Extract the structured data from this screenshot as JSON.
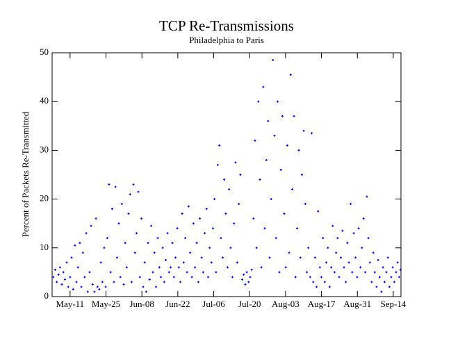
{
  "chart_data": {
    "type": "scatter",
    "title": "TCP Re-Transmissions",
    "subtitle": "Philadelphia to Paris",
    "ylabel": "Percent of Packets Re-Transmitted",
    "color": "#0000ff",
    "xlim": [
      124,
      260
    ],
    "ylim": [
      0,
      50
    ],
    "xticks": [
      {
        "value": 131,
        "label": "May-11"
      },
      {
        "value": 145,
        "label": "May-25"
      },
      {
        "value": 159,
        "label": "Jun-08"
      },
      {
        "value": 173,
        "label": "Jun-22"
      },
      {
        "value": 187,
        "label": "Jul-06"
      },
      {
        "value": 201,
        "label": "Jul-20"
      },
      {
        "value": 215,
        "label": "Aug-03"
      },
      {
        "value": 229,
        "label": "Aug-17"
      },
      {
        "value": 243,
        "label": "Aug-31"
      },
      {
        "value": 257,
        "label": "Sep-14"
      }
    ],
    "yticks": [
      0,
      10,
      20,
      30,
      40,
      50
    ],
    "x": [
      124.5,
      125.2,
      125.8,
      126.5,
      127.1,
      127.8,
      128.4,
      129,
      129.7,
      130.3,
      131,
      131.6,
      132.2,
      132.9,
      133.5,
      134.1,
      134.8,
      135.4,
      136,
      136.7,
      137.3,
      137.9,
      138.6,
      139.2,
      139.8,
      140.5,
      141.1,
      141.7,
      142.4,
      143,
      143.6,
      144.3,
      144.9,
      145.5,
      146.2,
      146.8,
      147.4,
      148.1,
      148.7,
      149.3,
      150,
      150.6,
      151.2,
      151.9,
      152.5,
      153.1,
      153.8,
      154.4,
      155,
      155.7,
      156.3,
      156.9,
      157.6,
      158.2,
      158.8,
      159.5,
      160.1,
      160.7,
      161.4,
      162,
      162.6,
      163.3,
      163.9,
      164.5,
      165.2,
      165.8,
      166.4,
      167.1,
      167.7,
      168.3,
      169,
      169.6,
      170.2,
      170.9,
      171.5,
      172.1,
      172.8,
      173.4,
      174,
      174.7,
      175.3,
      175.9,
      176.6,
      177.2,
      177.8,
      178.5,
      179.1,
      179.7,
      180.4,
      181,
      181.6,
      182.3,
      182.9,
      183.5,
      184.2,
      184.8,
      185.4,
      186.1,
      186.7,
      187.3,
      187.9,
      188.6,
      189.2,
      189.8,
      190.5,
      191.1,
      191.7,
      192.4,
      193,
      193.6,
      194.3,
      194.9,
      195.5,
      196.2,
      196.8,
      197.4,
      198.1,
      198.7,
      199.3,
      199.9,
      200.6,
      201.2,
      201.8,
      202.5,
      203.1,
      203.7,
      204.4,
      205,
      205.6,
      206.3,
      206.9,
      207.5,
      208.2,
      208.8,
      209.4,
      210.1,
      210.7,
      211.3,
      211.9,
      212.6,
      213.2,
      213.8,
      214.5,
      215.1,
      215.7,
      216.4,
      217,
      217.6,
      218.3,
      218.9,
      219.5,
      220.2,
      220.8,
      221.4,
      222.1,
      222.7,
      223.3,
      223.9,
      224.6,
      225.2,
      225.8,
      226.5,
      227.1,
      227.7,
      228.4,
      229,
      229.6,
      230.3,
      230.9,
      231.5,
      232.2,
      232.8,
      233.4,
      234.1,
      234.7,
      235.3,
      235.9,
      236.6,
      237.2,
      237.8,
      238.5,
      239.1,
      239.7,
      240.4,
      241,
      241.6,
      242.3,
      242.9,
      243.5,
      244.2,
      244.8,
      245.4,
      246.1,
      246.7,
      247.3,
      247.9,
      248.6,
      249.2,
      249.8,
      250.5,
      251.1,
      251.7,
      252.4,
      253,
      253.6,
      254.3,
      254.9,
      255.5,
      256.2,
      256.8,
      257.4,
      258.1,
      258.7,
      259.3,
      259.8
    ],
    "values": [
      4,
      5.5,
      3,
      4.5,
      6,
      2.5,
      5,
      3.5,
      7,
      2,
      4,
      8,
      1.5,
      10.5,
      3,
      6,
      11,
      2,
      9,
      4,
      13,
      1,
      5,
      14.5,
      2.5,
      1,
      16,
      2,
      1.5,
      7,
      3,
      10,
      2,
      12,
      23,
      5,
      18,
      3,
      22.5,
      8,
      15,
      4,
      19,
      2.5,
      11,
      6,
      17,
      21,
      3,
      23,
      9,
      13,
      21.5,
      4,
      16,
      2,
      7,
      1,
      11,
      3.5,
      14.5,
      5,
      9,
      2,
      12,
      6,
      4,
      10,
      3,
      7.5,
      13,
      5,
      6,
      11,
      4,
      8,
      14,
      6,
      3,
      17,
      7,
      12,
      5,
      18.5,
      9,
      4,
      15,
      6,
      11,
      3,
      16,
      8,
      5,
      13,
      18,
      4,
      10,
      7,
      14,
      20,
      5,
      27,
      31,
      12,
      8,
      24,
      17,
      6,
      22,
      10,
      4,
      15,
      27.5,
      7,
      19,
      25,
      3.5,
      4.5,
      2.5,
      5,
      3,
      4,
      5.5,
      16,
      32,
      10,
      40,
      24,
      6,
      43,
      14,
      28,
      36,
      8,
      20,
      48.5,
      33,
      12,
      40,
      5,
      26,
      37,
      17,
      6,
      31,
      9,
      45.5,
      22,
      37,
      4,
      14,
      30,
      8,
      25,
      34,
      19,
      5,
      10,
      4,
      33.5,
      3,
      8,
      2,
      17.5,
      6,
      4,
      12,
      3,
      7,
      10,
      2,
      6,
      14.5,
      5,
      9,
      12,
      4,
      8,
      13.5,
      6,
      3,
      11,
      7,
      19,
      5,
      13,
      8,
      4,
      14,
      6,
      10,
      16,
      5,
      20.5,
      12,
      7,
      3,
      9,
      5,
      2,
      7.5,
      4,
      1,
      6,
      3,
      5,
      8,
      2,
      4,
      6,
      3,
      5,
      7,
      4,
      5.5
    ]
  }
}
